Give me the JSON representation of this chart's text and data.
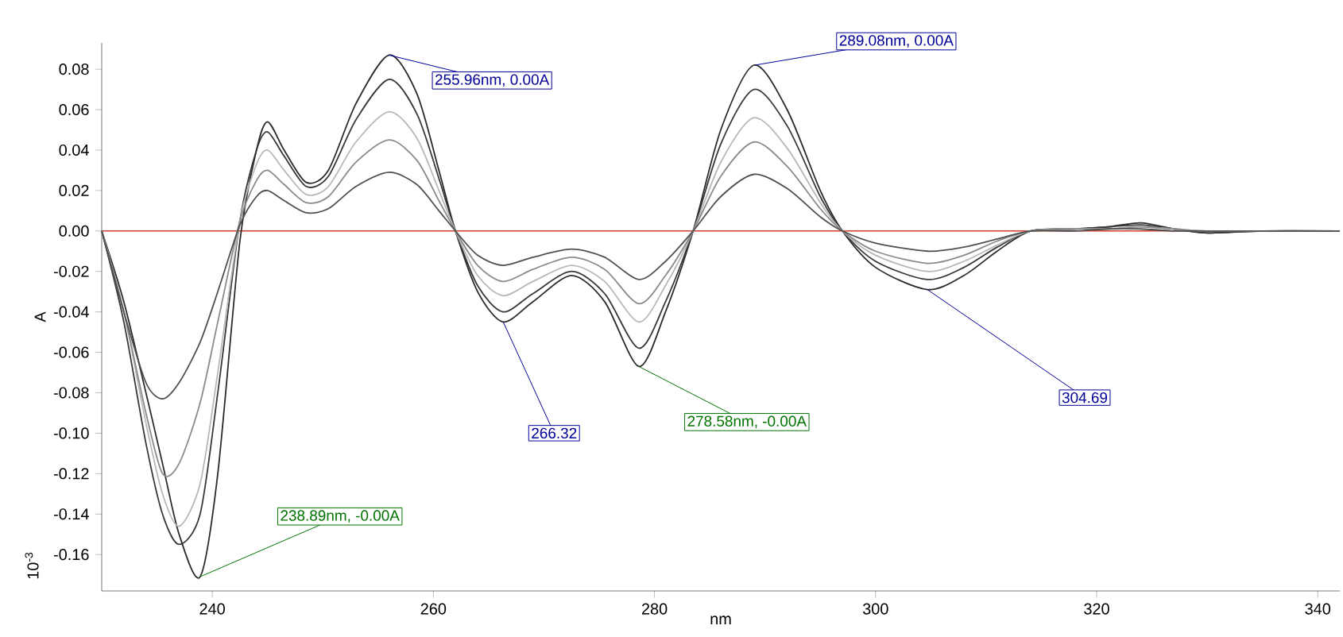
{
  "chart_data": {
    "type": "line",
    "xlabel": "nm",
    "ylabel": "A",
    "xlim": [
      230,
      342
    ],
    "ylim": [
      -0.178,
      0.093
    ],
    "xticks": [
      240,
      260,
      280,
      300,
      320,
      340
    ],
    "yticks": [
      -0.16,
      -0.14,
      -0.12,
      {
        "value": -0.1,
        "label": "-0.10"
      },
      -0.08,
      -0.06,
      -0.04,
      -0.02,
      {
        "value": 0,
        "label": "0.00"
      },
      0.02,
      0.04,
      0.06,
      0.08
    ],
    "marker": "none",
    "line_style": "solid",
    "x": [
      230,
      232,
      234,
      235.5,
      237,
      238.9,
      240.5,
      242.5,
      244,
      245,
      246.5,
      248.5,
      250.5,
      253,
      256,
      258.5,
      260.5,
      262,
      264,
      266.3,
      269,
      272.5,
      275.5,
      278.6,
      281,
      283.5,
      286,
      289,
      292,
      295,
      297,
      300,
      304.7,
      308,
      311,
      314,
      318,
      321,
      324,
      327,
      330,
      335,
      342
    ],
    "series": [
      {
        "color": "#2a2a2a",
        "values": [
          0,
          -0.035,
          -0.08,
          -0.115,
          -0.15,
          -0.171,
          -0.12,
          -0.005,
          0.04,
          0.054,
          0.04,
          0.024,
          0.03,
          0.063,
          0.087,
          0.068,
          0.03,
          0,
          -0.03,
          -0.045,
          -0.035,
          -0.022,
          -0.035,
          -0.067,
          -0.04,
          0,
          0.05,
          0.082,
          0.06,
          0.02,
          0,
          -0.018,
          -0.029,
          -0.022,
          -0.01,
          0,
          0.001,
          0.002,
          0.004,
          0.001,
          -0.001,
          0,
          0
        ]
      },
      {
        "color": "#383838",
        "values": [
          0,
          -0.045,
          -0.105,
          -0.14,
          -0.155,
          -0.14,
          -0.08,
          0.005,
          0.04,
          0.049,
          0.037,
          0.022,
          0.027,
          0.055,
          0.075,
          0.058,
          0.026,
          0,
          -0.027,
          -0.04,
          -0.031,
          -0.02,
          -0.031,
          -0.058,
          -0.035,
          0,
          0.043,
          0.07,
          0.052,
          0.017,
          0,
          -0.015,
          -0.024,
          -0.018,
          -0.008,
          0,
          0.001,
          0.002,
          0.003,
          0.001,
          -0.001,
          0,
          0
        ]
      },
      {
        "color": "#b8b8b8",
        "values": [
          0,
          -0.04,
          -0.095,
          -0.13,
          -0.146,
          -0.125,
          -0.07,
          0.005,
          0.033,
          0.04,
          0.03,
          0.018,
          0.022,
          0.044,
          0.059,
          0.046,
          0.02,
          0,
          -0.022,
          -0.032,
          -0.025,
          -0.017,
          -0.025,
          -0.045,
          -0.027,
          0,
          0.034,
          0.056,
          0.041,
          0.014,
          0,
          -0.012,
          -0.02,
          -0.015,
          -0.007,
          0,
          0.001,
          0.001,
          0.002,
          0.001,
          0,
          0,
          0
        ]
      },
      {
        "color": "#8a8a8a",
        "values": [
          0,
          -0.04,
          -0.09,
          -0.12,
          -0.115,
          -0.085,
          -0.045,
          0.005,
          0.025,
          0.03,
          0.023,
          0.014,
          0.017,
          0.034,
          0.045,
          0.035,
          0.015,
          0,
          -0.017,
          -0.025,
          -0.019,
          -0.013,
          -0.019,
          -0.036,
          -0.022,
          0,
          0.027,
          0.044,
          0.032,
          0.011,
          0,
          -0.01,
          -0.016,
          -0.012,
          -0.005,
          0,
          0.001,
          0.001,
          0.002,
          0.001,
          0,
          0,
          0
        ]
      },
      {
        "color": "#505050",
        "values": [
          0,
          -0.04,
          -0.075,
          -0.083,
          -0.075,
          -0.055,
          -0.03,
          0.003,
          0.017,
          0.02,
          0.015,
          0.009,
          0.011,
          0.022,
          0.029,
          0.023,
          0.01,
          0,
          -0.012,
          -0.017,
          -0.013,
          -0.009,
          -0.013,
          -0.024,
          -0.015,
          0,
          0.017,
          0.028,
          0.021,
          0.007,
          0,
          -0.006,
          -0.01,
          -0.008,
          -0.004,
          0,
          0,
          0.001,
          0.001,
          0,
          0,
          0,
          0
        ]
      }
    ],
    "ref_lines": [
      {
        "axis": "y",
        "value": 0,
        "color": "#d04030"
      }
    ],
    "annotations": [
      {
        "text": "255.96nm, 0.00A",
        "x": 255.96,
        "y": 0.087
      },
      {
        "text": "289.08nm, 0.00A",
        "x": 289.08,
        "y": 0.082
      },
      {
        "text": "266.32",
        "x": 266.32,
        "y": -0.045
      },
      {
        "text": "278.58nm, -0.00A",
        "x": 278.58,
        "y": -0.067
      },
      {
        "text": "304.69",
        "x": 304.69,
        "y": -0.029
      },
      {
        "text": "238.89nm, -0.00A",
        "x": 238.89,
        "y": -0.171
      },
      "10$^{-3}$"
    ]
  }
}
